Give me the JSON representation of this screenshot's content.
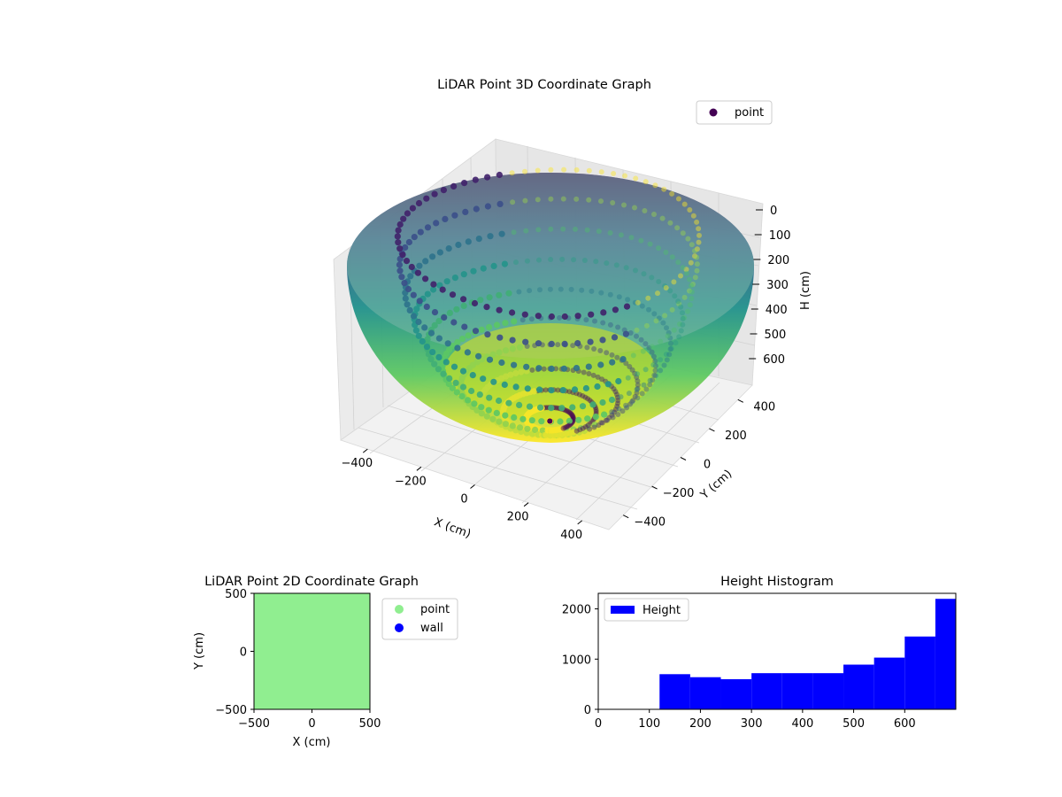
{
  "colors": {
    "point2d": "#90EE90",
    "wall": "#0000FF",
    "hist": "#0000FF",
    "legend_point3d": "#440154",
    "colormap": "viridis"
  },
  "chart_data": [
    {
      "type": "scatter",
      "projection": "3d",
      "title": "LiDAR Point 3D Coordinate Graph",
      "xlabel": "X (cm)",
      "ylabel": "Y (cm)",
      "zlabel": "H (cm)",
      "xticks": [
        -400,
        -200,
        0,
        200,
        400
      ],
      "yticks": [
        -400,
        -200,
        0,
        200,
        400
      ],
      "zticks": [
        0,
        100,
        200,
        300,
        400,
        500,
        600
      ],
      "xlim": [
        -500,
        500
      ],
      "ylim": [
        -500,
        500
      ],
      "zlim": [
        0,
        680
      ],
      "z_inverted": true,
      "grid": true,
      "legend": {
        "location": "top-right",
        "entries": [
          "point"
        ]
      },
      "series": [
        {
          "name": "point",
          "shape": "hemispherical bowl of points, radius ~500 cm, depth ~680 cm",
          "radius": 500,
          "max_height": 680,
          "colored_by": "H (cm)"
        }
      ]
    },
    {
      "type": "scatter",
      "title": "LiDAR Point 2D Coordinate Graph",
      "xlabel": "X (cm)",
      "ylabel": "Y (cm)",
      "xticks": [
        -500,
        0,
        500
      ],
      "yticks": [
        -500,
        0,
        500
      ],
      "xlim": [
        -500,
        500
      ],
      "ylim": [
        -500,
        500
      ],
      "legend": {
        "location": "outside-right",
        "entries": [
          "point",
          "wall"
        ]
      },
      "series": [
        {
          "name": "point",
          "fill_region": {
            "x": [
              -500,
              500
            ],
            "y": [
              -500,
              500
            ]
          }
        },
        {
          "name": "wall",
          "points": []
        }
      ]
    },
    {
      "type": "bar",
      "subtype": "histogram",
      "title": "Height Histogram",
      "xticks": [
        0,
        100,
        200,
        300,
        400,
        500,
        600
      ],
      "yticks": [
        0,
        1000,
        2000
      ],
      "xlim": [
        0,
        700
      ],
      "ylim": [
        0,
        2310
      ],
      "legend": {
        "location": "top-left",
        "entries": [
          "Height"
        ]
      },
      "bin_edges": [
        0,
        60,
        120,
        180,
        240,
        300,
        360,
        420,
        480,
        540,
        600,
        660,
        700
      ],
      "series": [
        {
          "name": "Height",
          "values": [
            0,
            0,
            700,
            640,
            600,
            720,
            720,
            720,
            890,
            1030,
            1450,
            2200
          ]
        }
      ]
    }
  ]
}
